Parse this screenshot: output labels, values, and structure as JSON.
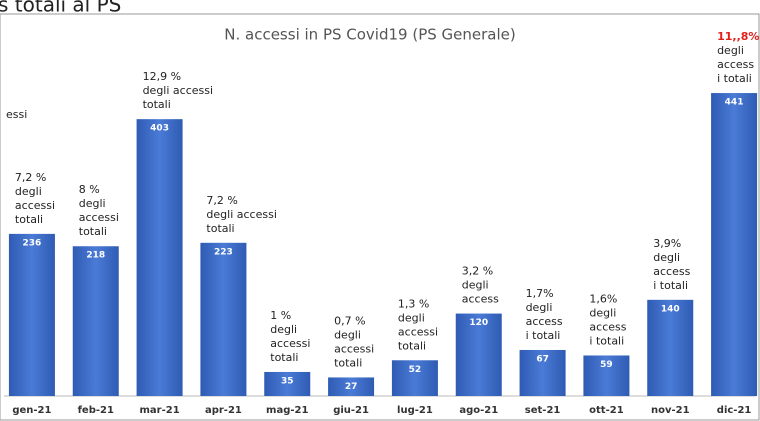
{
  "chart_data": {
    "type": "bar",
    "header_fragment": "s totali al PS",
    "title": "N. accessi in PS Covid19 (PS Generale)",
    "side_fragment": "essi",
    "categories": [
      "gen-21",
      "feb-21",
      "mar-21",
      "apr-21",
      "mag-21",
      "giu-21",
      "lug-21",
      "ago-21",
      "set-21",
      "ott-21",
      "nov-21",
      "dic-21"
    ],
    "values": [
      236,
      218,
      403,
      223,
      35,
      27,
      52,
      120,
      67,
      59,
      140,
      441
    ],
    "color": "#3a68c2",
    "ylim": [
      0,
      460
    ],
    "annotations": [
      [
        "7,2 %",
        "degli",
        "accessi",
        "totali"
      ],
      [
        "8 %",
        "degli",
        "accessi",
        "totali"
      ],
      [
        "12,9 %",
        "degli accessi",
        "totali"
      ],
      [
        "7,2 %",
        "degli accessi",
        "totali"
      ],
      [
        "1 %",
        "degli",
        "accessi",
        "totali"
      ],
      [
        "0,7 %",
        "degli",
        "accessi",
        "totali"
      ],
      [
        "1,3 %",
        "degli",
        "accessi",
        "totali"
      ],
      [
        "3,2 %",
        "degli",
        "access"
      ],
      [
        "1,7%",
        "degli",
        "access",
        "i totali"
      ],
      [
        "1,6%",
        "degli",
        "access",
        "i totali"
      ],
      [
        "3,9%",
        "degli",
        "access",
        "i totali"
      ],
      [
        "11,,8%",
        "degli",
        "access",
        "i totali"
      ]
    ],
    "highlight": {
      "index": 11,
      "color": "#e0201b"
    }
  }
}
